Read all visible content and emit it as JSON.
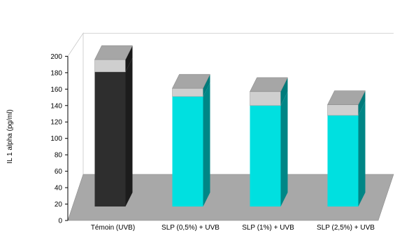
{
  "chart_data": {
    "type": "bar",
    "ylabel": "IL 1 alpha (pg/ml)",
    "ylim": [
      0,
      200
    ],
    "yticks": [
      0,
      20,
      40,
      60,
      80,
      100,
      120,
      140,
      160,
      180,
      200
    ],
    "categories": [
      "Témoin (UVB)",
      "SLP (0,5%) + UVB",
      "SLP (1%) + UVB",
      "SLP (2,5%) + UVB"
    ],
    "series": [
      {
        "values": [
          181,
          151,
          140,
          128
        ]
      }
    ],
    "error_upper": [
      196,
      161,
      157,
      141
    ],
    "grid": false,
    "legend": "none",
    "colors": {
      "control_bar": "#2e2e2e",
      "treated_bar": "#00e0e0",
      "error_cap": "#cfcfcf",
      "cap_top": "#a6a6a6",
      "floor": "#a8a8a8"
    }
  }
}
